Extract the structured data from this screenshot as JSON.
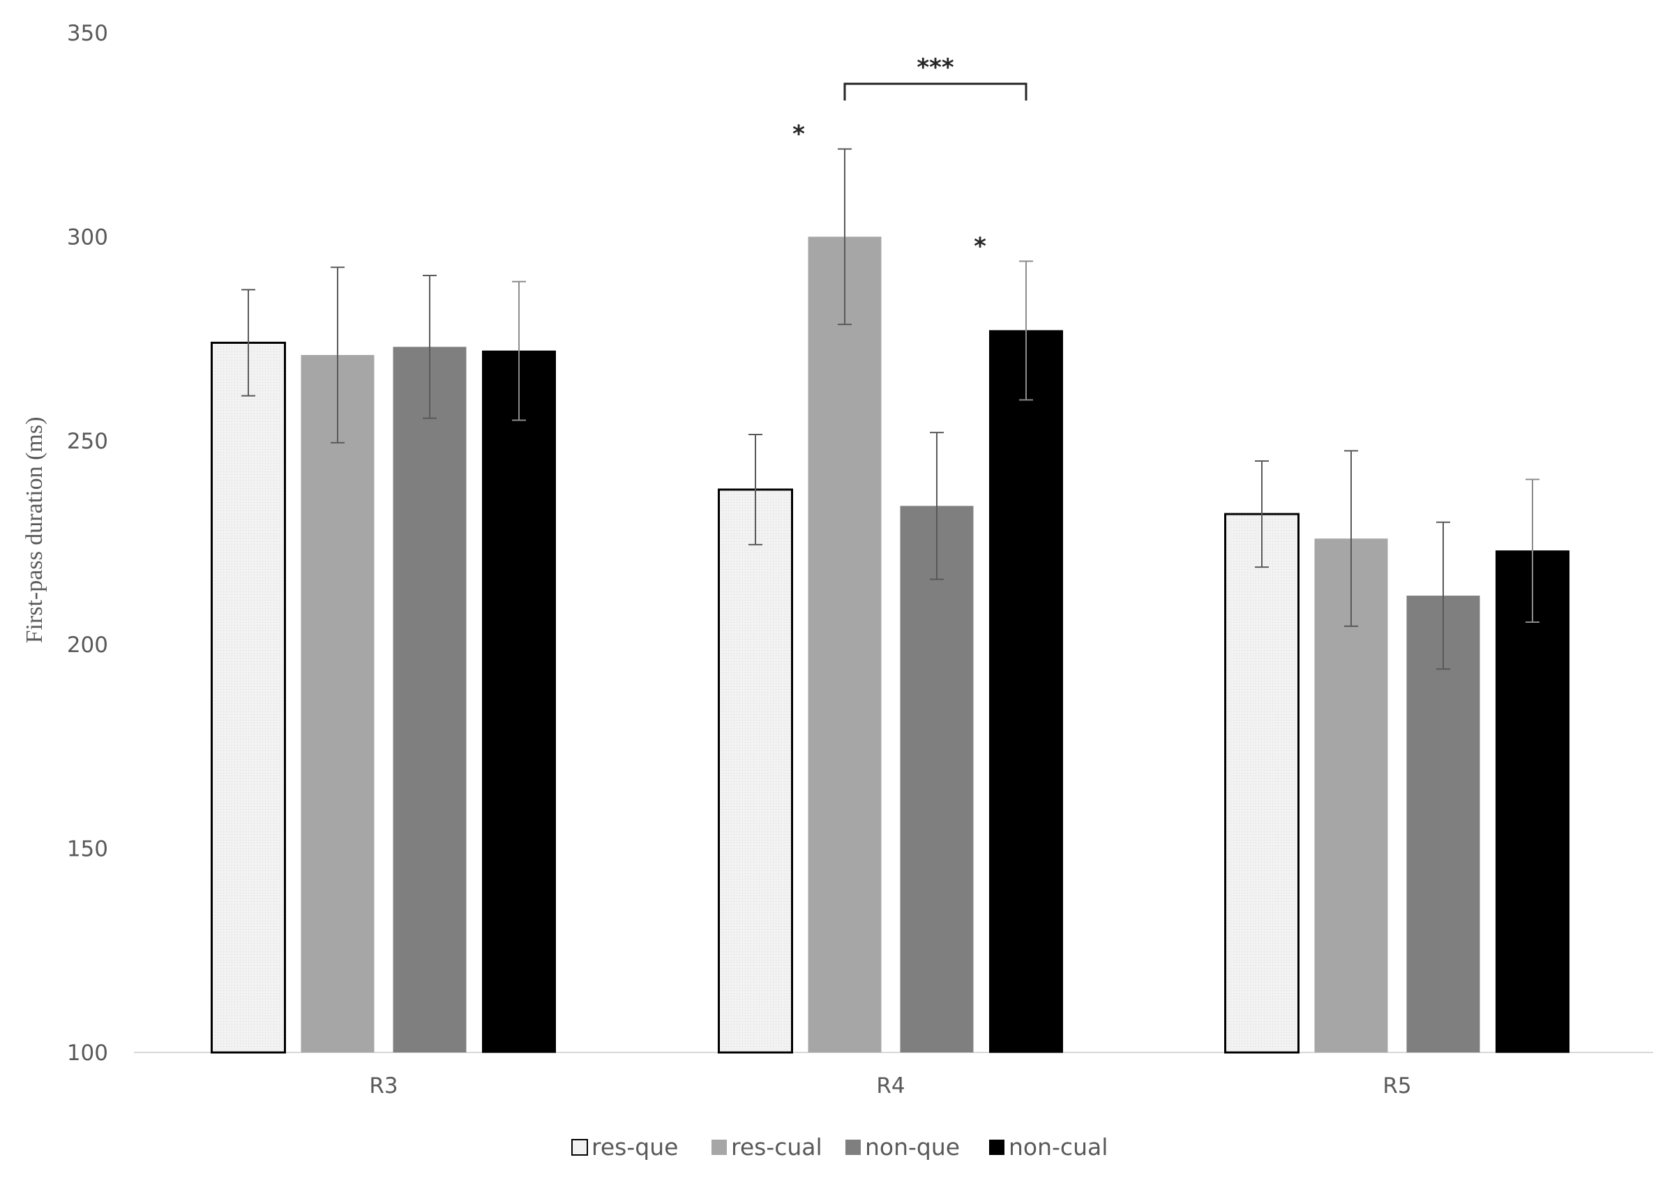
{
  "chart_data": {
    "type": "bar",
    "title": "",
    "ylabel": "First-pass duration (ms)",
    "xlabel": "",
    "ylim": [
      100,
      350
    ],
    "yticks": [
      100,
      150,
      200,
      250,
      300,
      350
    ],
    "grid": false,
    "legend_position": "bottom",
    "categories": [
      "R3",
      "R4",
      "R5"
    ],
    "series": [
      {
        "name": "res-que",
        "color": "#f2f2f2",
        "outline": "#000000",
        "values": [
          274,
          238,
          232
        ],
        "errors": [
          13,
          13.5,
          13
        ]
      },
      {
        "name": "res-cual",
        "color": "#a6a6a6",
        "outline": "",
        "values": [
          271,
          300,
          226
        ],
        "errors": [
          21.5,
          21.5,
          21.5
        ]
      },
      {
        "name": "non-que",
        "color": "#7f7f7f",
        "outline": "",
        "values": [
          273,
          234,
          212
        ],
        "errors": [
          17.5,
          18,
          18
        ]
      },
      {
        "name": "non-cual",
        "color": "#000000",
        "outline": "",
        "values": [
          272,
          277,
          223
        ],
        "errors": [
          17,
          17,
          17.5
        ]
      }
    ],
    "annotations": [
      {
        "text": "*",
        "category": "R4",
        "series": "res-cual"
      },
      {
        "text": "*",
        "category": "R4",
        "series": "non-cual"
      },
      {
        "text": "***",
        "category": "R4",
        "from_series": "res-cual",
        "to_series": "non-cual",
        "bracket": true
      }
    ]
  }
}
